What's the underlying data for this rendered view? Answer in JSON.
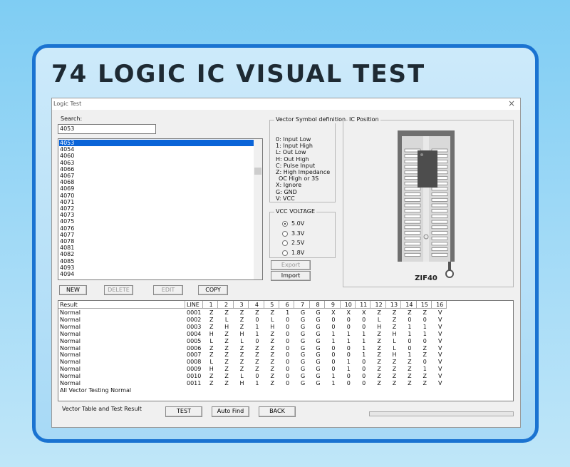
{
  "heading": "74 LOGIC IC VISUAL TEST",
  "window": {
    "title": "Logic Test"
  },
  "search": {
    "label": "Search:",
    "value": "4053"
  },
  "list": {
    "items": [
      "4053",
      "4054",
      "4060",
      "4063",
      "4066",
      "4067",
      "4068",
      "4069",
      "4070",
      "4071",
      "4072",
      "4073",
      "4075",
      "4076",
      "4077",
      "4078",
      "4081",
      "4082",
      "4085",
      "4093",
      "4094"
    ],
    "selected": 0
  },
  "vector_symbols": {
    "title": "Vector Symbol definition",
    "lines": [
      "0: Input Low",
      "1: Input High",
      "L: Out Low",
      "H: Out High",
      "C: Pulse Input",
      "Z: High Impedance",
      "OC High or 3S",
      "X: Ignore",
      "G: GND",
      "V: VCC"
    ]
  },
  "vcc": {
    "title": "VCC VOLTAGE",
    "options": [
      "5.0V",
      "3.3V",
      "2.5V",
      "1.8V"
    ],
    "selected": 0
  },
  "side_buttons": [
    "Export",
    "Import"
  ],
  "ic_position": {
    "title": "IC Position",
    "socket": "ZIF40"
  },
  "list_buttons": [
    "NEW",
    "DELETE",
    "EDIT",
    "COPY"
  ],
  "table": {
    "headers": [
      "Result",
      "LINE",
      "1",
      "2",
      "3",
      "4",
      "5",
      "6",
      "7",
      "8",
      "9",
      "10",
      "11",
      "12",
      "13",
      "14",
      "15",
      "16"
    ],
    "rows": [
      [
        "Normal",
        "0001",
        "Z",
        "Z",
        "Z",
        "Z",
        "Z",
        "1",
        "G",
        "G",
        "X",
        "X",
        "X",
        "Z",
        "Z",
        "Z",
        "Z",
        "V"
      ],
      [
        "Normal",
        "0002",
        "Z",
        "L",
        "Z",
        "0",
        "L",
        "0",
        "G",
        "G",
        "0",
        "0",
        "0",
        "L",
        "Z",
        "0",
        "0",
        "V"
      ],
      [
        "Normal",
        "0003",
        "Z",
        "H",
        "Z",
        "1",
        "H",
        "0",
        "G",
        "G",
        "0",
        "0",
        "0",
        "H",
        "Z",
        "1",
        "1",
        "V"
      ],
      [
        "Normal",
        "0004",
        "H",
        "Z",
        "H",
        "1",
        "Z",
        "0",
        "G",
        "G",
        "1",
        "1",
        "1",
        "Z",
        "H",
        "1",
        "1",
        "V"
      ],
      [
        "Normal",
        "0005",
        "L",
        "Z",
        "L",
        "0",
        "Z",
        "0",
        "G",
        "G",
        "1",
        "1",
        "1",
        "Z",
        "L",
        "0",
        "0",
        "V"
      ],
      [
        "Normal",
        "0006",
        "Z",
        "Z",
        "Z",
        "Z",
        "Z",
        "0",
        "G",
        "G",
        "0",
        "0",
        "1",
        "Z",
        "L",
        "0",
        "Z",
        "V"
      ],
      [
        "Normal",
        "0007",
        "Z",
        "Z",
        "Z",
        "Z",
        "Z",
        "0",
        "G",
        "G",
        "0",
        "0",
        "1",
        "Z",
        "H",
        "1",
        "Z",
        "V"
      ],
      [
        "Normal",
        "0008",
        "L",
        "Z",
        "Z",
        "Z",
        "Z",
        "0",
        "G",
        "G",
        "0",
        "1",
        "0",
        "Z",
        "Z",
        "Z",
        "0",
        "V"
      ],
      [
        "Normal",
        "0009",
        "H",
        "Z",
        "Z",
        "Z",
        "Z",
        "0",
        "G",
        "G",
        "0",
        "1",
        "0",
        "Z",
        "Z",
        "Z",
        "1",
        "V"
      ],
      [
        "Normal",
        "0010",
        "Z",
        "Z",
        "L",
        "0",
        "Z",
        "0",
        "G",
        "G",
        "1",
        "0",
        "0",
        "Z",
        "Z",
        "Z",
        "Z",
        "V"
      ],
      [
        "Normal",
        "0011",
        "Z",
        "Z",
        "H",
        "1",
        "Z",
        "0",
        "G",
        "G",
        "1",
        "0",
        "0",
        "Z",
        "Z",
        "Z",
        "Z",
        "V"
      ]
    ],
    "summary": "All Vector Testing Normal"
  },
  "footer": {
    "label": "Vector Table and Test Result",
    "buttons": [
      "TEST",
      "Auto Find",
      "BACK"
    ]
  }
}
